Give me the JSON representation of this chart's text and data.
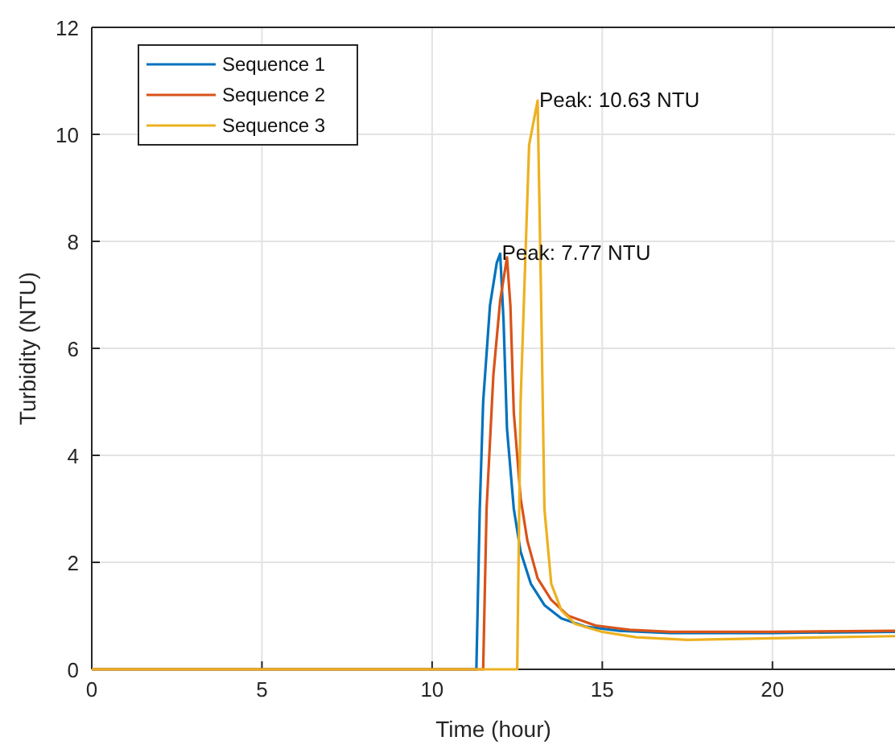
{
  "chart_data": {
    "type": "line",
    "xlabel": "Time (hour)",
    "ylabel": "Turbidity (NTU)",
    "xlim": [
      0,
      23.6
    ],
    "ylim": [
      0,
      12
    ],
    "xticks": [
      0,
      5,
      10,
      15,
      20
    ],
    "yticks": [
      0,
      2,
      4,
      6,
      8,
      10,
      12
    ],
    "grid": true,
    "legend": "top left",
    "line_style": "solid",
    "marker": "none",
    "annotations": [
      {
        "text": "Peak: 7.77 NTU",
        "x": 12.0,
        "y": 7.77
      },
      {
        "text": "Peak: 10.63 NTU",
        "x": 13.1,
        "y": 10.63
      }
    ],
    "series": [
      {
        "name": "Sequence 1",
        "color": "#0072bd",
        "x": [
          0,
          11.3,
          11.4,
          11.5,
          11.7,
          11.9,
          12.0,
          12.1,
          12.2,
          12.4,
          12.6,
          12.9,
          13.3,
          13.8,
          14.5,
          15.5,
          17,
          20,
          23.6
        ],
        "values": [
          0,
          0,
          3,
          5,
          6.8,
          7.6,
          7.77,
          6.5,
          4.5,
          3.0,
          2.2,
          1.6,
          1.2,
          0.95,
          0.8,
          0.72,
          0.68,
          0.68,
          0.7
        ]
      },
      {
        "name": "Sequence 2",
        "color": "#d95319",
        "x": [
          0,
          11.5,
          11.6,
          11.8,
          12.0,
          12.2,
          12.3,
          12.4,
          12.6,
          12.8,
          13.1,
          13.5,
          14,
          14.8,
          15.8,
          17,
          20,
          23.6
        ],
        "values": [
          0,
          0,
          3,
          5.5,
          6.9,
          7.7,
          6.8,
          4.8,
          3.2,
          2.4,
          1.7,
          1.3,
          1.0,
          0.82,
          0.74,
          0.7,
          0.7,
          0.72
        ]
      },
      {
        "name": "Sequence 3",
        "color": "#edb120",
        "x": [
          0,
          12.5,
          12.6,
          12.85,
          13.0,
          13.1,
          13.2,
          13.3,
          13.5,
          13.8,
          14.2,
          15,
          16,
          17.5,
          20,
          23.6
        ],
        "values": [
          0,
          0,
          5,
          9.8,
          10.3,
          10.63,
          7,
          3,
          1.6,
          1.1,
          0.85,
          0.7,
          0.6,
          0.55,
          0.58,
          0.62
        ]
      }
    ]
  }
}
